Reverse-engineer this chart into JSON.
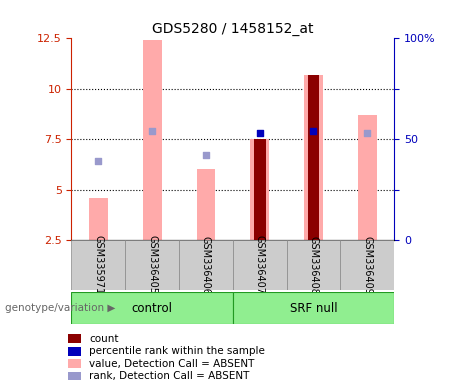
{
  "title": "GDS5280 / 1458152_at",
  "samples": [
    "GSM335971",
    "GSM336405",
    "GSM336406",
    "GSM336407",
    "GSM336408",
    "GSM336409"
  ],
  "pink_bar_values": [
    4.6,
    12.4,
    6.0,
    7.5,
    10.7,
    8.7
  ],
  "dark_red_bar_values": [
    null,
    null,
    null,
    7.5,
    10.7,
    null
  ],
  "blue_square_values": [
    6.4,
    7.9,
    6.7,
    7.8,
    7.9,
    7.8
  ],
  "blue_square_dark": [
    false,
    false,
    false,
    true,
    true,
    false
  ],
  "ylim_left": [
    2.5,
    12.5
  ],
  "ylim_right": [
    0,
    100
  ],
  "yticks_left": [
    2.5,
    5.0,
    7.5,
    10.0,
    12.5
  ],
  "yticks_left_labels": [
    "2.5",
    "5",
    "7.5",
    "10",
    "12.5"
  ],
  "yticks_right": [
    0,
    25,
    50,
    75,
    100
  ],
  "yticks_right_labels": [
    "0",
    "",
    "50",
    "",
    "100%"
  ],
  "left_axis_color": "#cc2200",
  "right_axis_color": "#0000bb",
  "pink_bar_color": "#ffaaaa",
  "dark_red_bar_color": "#8b0000",
  "dark_blue_sq_color": "#0000bb",
  "light_blue_sq_color": "#9999cc",
  "bar_width": 0.35,
  "dark_red_bar_width": 0.22,
  "groups_info": [
    {
      "label": "control",
      "start": 0,
      "end": 2
    },
    {
      "label": "SRF null",
      "start": 3,
      "end": 5
    }
  ],
  "group_label": "genotype/variation",
  "legend_items": [
    {
      "label": "count",
      "color": "#8b0000"
    },
    {
      "label": "percentile rank within the sample",
      "color": "#0000bb"
    },
    {
      "label": "value, Detection Call = ABSENT",
      "color": "#ffaaaa"
    },
    {
      "label": "rank, Detection Call = ABSENT",
      "color": "#9999cc"
    }
  ]
}
